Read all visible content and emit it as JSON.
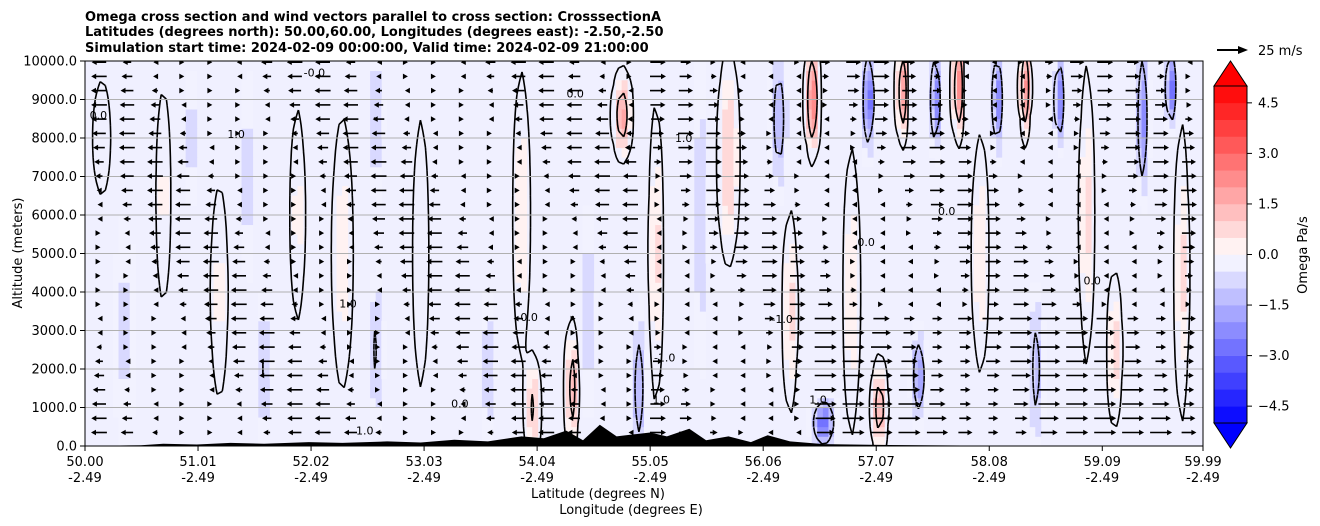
{
  "chart_data": {
    "type": "heatmap",
    "title_lines": [
      "Omega cross section and wind vectors parallel to cross section: CrosssectionA",
      "Latitudes (degrees north): 50.00,60.00, Longitudes (degrees east): -2.50,-2.50",
      "Simulation start time: 2024-02-09 00:00:00, Valid time: 2024-02-09 21:00:00"
    ],
    "xlabel_line1": "Latitude (degrees N)",
    "xlabel_line2": "Longitude (degrees E)",
    "ylabel": "Altitude (meters)",
    "xlim": [
      50.0,
      59.99
    ],
    "ylim": [
      0,
      10000
    ],
    "x_ticks": [
      {
        "lat": "50.00",
        "lon": "-2.49",
        "v": 50.0
      },
      {
        "lat": "51.01",
        "lon": "-2.49",
        "v": 51.01
      },
      {
        "lat": "52.02",
        "lon": "-2.49",
        "v": 52.02
      },
      {
        "lat": "53.03",
        "lon": "-2.49",
        "v": 53.03
      },
      {
        "lat": "54.04",
        "lon": "-2.49",
        "v": 54.04
      },
      {
        "lat": "55.05",
        "lon": "-2.49",
        "v": 55.05
      },
      {
        "lat": "56.06",
        "lon": "-2.49",
        "v": 56.06
      },
      {
        "lat": "57.07",
        "lon": "-2.49",
        "v": 57.07
      },
      {
        "lat": "58.08",
        "lon": "-2.49",
        "v": 58.08
      },
      {
        "lat": "59.09",
        "lon": "-2.49",
        "v": 59.09
      },
      {
        "lat": "59.99",
        "lon": "-2.49",
        "v": 59.99
      }
    ],
    "y_ticks": [
      {
        "label": "0.0",
        "v": 0
      },
      {
        "label": "1000.0",
        "v": 1000
      },
      {
        "label": "2000.0",
        "v": 2000
      },
      {
        "label": "3000.0",
        "v": 3000
      },
      {
        "label": "4000.0",
        "v": 4000
      },
      {
        "label": "5000.0",
        "v": 5000
      },
      {
        "label": "6000.0",
        "v": 6000
      },
      {
        "label": "7000.0",
        "v": 7000
      },
      {
        "label": "8000.0",
        "v": 8000
      },
      {
        "label": "9000.0",
        "v": 9000
      },
      {
        "label": "10000.0",
        "v": 10000
      }
    ],
    "grid": "horizontal",
    "colorbar": {
      "label": "Omega Pa/s",
      "min": -5.0,
      "max": 5.0,
      "step": 0.5,
      "extend": "both",
      "ticks": [
        {
          "label": "4.5",
          "v": 4.5
        },
        {
          "label": "3.0",
          "v": 3.0
        },
        {
          "label": "1.5",
          "v": 1.5
        },
        {
          "label": "0.0",
          "v": 0.0
        },
        {
          "label": "−1.5",
          "v": -1.5
        },
        {
          "label": "−3.0",
          "v": -3.0
        },
        {
          "label": "−4.5",
          "v": -4.5
        }
      ],
      "colors": {
        "negative": "#0000ff",
        "neutral": "#ffffff",
        "positive": "#ff0000"
      }
    },
    "quiver_key": {
      "label": "25 m/s",
      "speed": 25
    },
    "contour_levels_shown": [
      -1.0,
      0.0,
      1.0
    ],
    "contour_labels": [
      {
        "text": "-0.0",
        "lat": 52.05,
        "alt": 9600
      },
      {
        "text": "0.0",
        "lat": 54.38,
        "alt": 9050
      },
      {
        "text": "1.0",
        "lat": 55.35,
        "alt": 7900
      },
      {
        "text": "0.0",
        "lat": 56.98,
        "alt": 5200
      },
      {
        "text": "1.0",
        "lat": 52.35,
        "alt": 3600
      },
      {
        "text": "-1.0",
        "lat": 56.23,
        "alt": 3200
      },
      {
        "text": "-0.0",
        "lat": 53.95,
        "alt": 3250
      },
      {
        "text": "1.0",
        "lat": 55.15,
        "alt": 1100
      },
      {
        "text": "1.0",
        "lat": 52.5,
        "alt": 300
      },
      {
        "text": "0.0",
        "lat": 50.12,
        "alt": 8500
      },
      {
        "text": "1.0",
        "lat": 51.35,
        "alt": 8000
      },
      {
        "text": "0.0",
        "lat": 53.35,
        "alt": 1000
      },
      {
        "text": "-1.0",
        "lat": 55.18,
        "alt": 2200
      },
      {
        "text": "0.0",
        "lat": 57.7,
        "alt": 6000
      },
      {
        "text": "0.0",
        "lat": 59.0,
        "alt": 4200
      },
      {
        "text": "1.0",
        "lat": 56.55,
        "alt": 1100
      }
    ],
    "omega_features": [
      {
        "lat": 50.15,
        "alt": 8000,
        "sl": 0.08,
        "sa": 1500,
        "amp": 0.4
      },
      {
        "lat": 50.35,
        "alt": 3000,
        "sl": 0.08,
        "sa": 2500,
        "amp": -0.5
      },
      {
        "lat": 50.7,
        "alt": 6500,
        "sl": 0.06,
        "sa": 2500,
        "amp": 0.5
      },
      {
        "lat": 50.95,
        "alt": 8000,
        "sl": 0.05,
        "sa": 1500,
        "amp": -0.6
      },
      {
        "lat": 51.2,
        "alt": 4000,
        "sl": 0.07,
        "sa": 2500,
        "amp": 0.5
      },
      {
        "lat": 51.45,
        "alt": 7000,
        "sl": 0.05,
        "sa": 2000,
        "amp": -0.7
      },
      {
        "lat": 51.6,
        "alt": 2000,
        "sl": 0.05,
        "sa": 1500,
        "amp": -0.9
      },
      {
        "lat": 51.9,
        "alt": 6000,
        "sl": 0.06,
        "sa": 2500,
        "amp": 0.5
      },
      {
        "lat": 52.3,
        "alt": 5000,
        "sl": 0.08,
        "sa": 3000,
        "amp": 0.6
      },
      {
        "lat": 52.6,
        "alt": 8500,
        "sl": 0.05,
        "sa": 1500,
        "amp": -0.9
      },
      {
        "lat": 52.6,
        "alt": 2500,
        "sl": 0.05,
        "sa": 1500,
        "amp": -1.0
      },
      {
        "lat": 53.0,
        "alt": 5000,
        "sl": 0.07,
        "sa": 3500,
        "amp": 0.4
      },
      {
        "lat": 53.6,
        "alt": 2000,
        "sl": 0.05,
        "sa": 1500,
        "amp": -0.8
      },
      {
        "lat": 53.9,
        "alt": 6000,
        "sl": 0.06,
        "sa": 3000,
        "amp": 0.7
      },
      {
        "lat": 54.0,
        "alt": 1000,
        "sl": 0.05,
        "sa": 1000,
        "amp": 1.3
      },
      {
        "lat": 54.35,
        "alt": 1500,
        "sl": 0.04,
        "sa": 1200,
        "amp": 1.8
      },
      {
        "lat": 54.5,
        "alt": 3500,
        "sl": 0.05,
        "sa": 2000,
        "amp": -0.8
      },
      {
        "lat": 54.8,
        "alt": 8600,
        "sl": 0.06,
        "sa": 800,
        "amp": 2.0
      },
      {
        "lat": 54.95,
        "alt": 1500,
        "sl": 0.05,
        "sa": 1500,
        "amp": -1.5
      },
      {
        "lat": 55.1,
        "alt": 5000,
        "sl": 0.05,
        "sa": 3000,
        "amp": 0.8
      },
      {
        "lat": 55.5,
        "alt": 6000,
        "sl": 0.05,
        "sa": 3000,
        "amp": -0.8
      },
      {
        "lat": 55.75,
        "alt": 7500,
        "sl": 0.07,
        "sa": 2000,
        "amp": 1.2
      },
      {
        "lat": 56.2,
        "alt": 8500,
        "sl": 0.06,
        "sa": 1500,
        "amp": -1.4
      },
      {
        "lat": 56.3,
        "alt": 3500,
        "sl": 0.05,
        "sa": 2000,
        "amp": 0.9
      },
      {
        "lat": 56.5,
        "alt": 9000,
        "sl": 0.04,
        "sa": 1000,
        "amp": 3.2
      },
      {
        "lat": 56.6,
        "alt": 600,
        "sl": 0.08,
        "sa": 500,
        "amp": -2.8
      },
      {
        "lat": 56.85,
        "alt": 4000,
        "sl": 0.06,
        "sa": 3000,
        "amp": 0.7
      },
      {
        "lat": 57.0,
        "alt": 9000,
        "sl": 0.04,
        "sa": 1000,
        "amp": -3.0
      },
      {
        "lat": 57.1,
        "alt": 1000,
        "sl": 0.05,
        "sa": 900,
        "amp": 1.8
      },
      {
        "lat": 57.3,
        "alt": 9200,
        "sl": 0.03,
        "sa": 900,
        "amp": 3.0
      },
      {
        "lat": 57.45,
        "alt": 1800,
        "sl": 0.05,
        "sa": 900,
        "amp": -2.0
      },
      {
        "lat": 57.6,
        "alt": 9000,
        "sl": 0.03,
        "sa": 1000,
        "amp": -3.0
      },
      {
        "lat": 57.8,
        "alt": 9300,
        "sl": 0.03,
        "sa": 900,
        "amp": 3.5
      },
      {
        "lat": 58.0,
        "alt": 5000,
        "sl": 0.06,
        "sa": 2500,
        "amp": 0.7
      },
      {
        "lat": 58.15,
        "alt": 9000,
        "sl": 0.03,
        "sa": 1000,
        "amp": -3.2
      },
      {
        "lat": 58.4,
        "alt": 9300,
        "sl": 0.03,
        "sa": 900,
        "amp": 3.0
      },
      {
        "lat": 58.5,
        "alt": 2000,
        "sl": 0.05,
        "sa": 1500,
        "amp": -1.3
      },
      {
        "lat": 58.7,
        "alt": 9000,
        "sl": 0.03,
        "sa": 900,
        "amp": -3.0
      },
      {
        "lat": 58.95,
        "alt": 6000,
        "sl": 0.05,
        "sa": 3000,
        "amp": 0.8
      },
      {
        "lat": 59.2,
        "alt": 2500,
        "sl": 0.05,
        "sa": 1500,
        "amp": 1.0
      },
      {
        "lat": 59.45,
        "alt": 8500,
        "sl": 0.04,
        "sa": 1500,
        "amp": -2.3
      },
      {
        "lat": 59.7,
        "alt": 9300,
        "sl": 0.03,
        "sa": 800,
        "amp": -3.5
      },
      {
        "lat": 59.8,
        "alt": 4500,
        "sl": 0.05,
        "sa": 3000,
        "amp": 0.8
      }
    ],
    "terrain": [
      [
        50.0,
        0
      ],
      [
        50.5,
        20
      ],
      [
        50.7,
        60
      ],
      [
        51.0,
        40
      ],
      [
        51.3,
        80
      ],
      [
        51.6,
        60
      ],
      [
        52.0,
        100
      ],
      [
        52.3,
        80
      ],
      [
        52.7,
        120
      ],
      [
        53.0,
        90
      ],
      [
        53.3,
        160
      ],
      [
        53.6,
        120
      ],
      [
        53.9,
        250
      ],
      [
        54.1,
        200
      ],
      [
        54.3,
        400
      ],
      [
        54.45,
        150
      ],
      [
        54.6,
        550
      ],
      [
        54.75,
        250
      ],
      [
        54.9,
        300
      ],
      [
        55.05,
        350
      ],
      [
        55.2,
        250
      ],
      [
        55.4,
        450
      ],
      [
        55.55,
        150
      ],
      [
        55.75,
        250
      ],
      [
        55.95,
        100
      ],
      [
        56.1,
        280
      ],
      [
        56.3,
        120
      ],
      [
        56.6,
        50
      ],
      [
        57.0,
        30
      ],
      [
        57.5,
        20
      ],
      [
        58.0,
        10
      ],
      [
        58.5,
        10
      ],
      [
        59.0,
        10
      ],
      [
        59.5,
        10
      ],
      [
        59.99,
        10
      ]
    ]
  }
}
